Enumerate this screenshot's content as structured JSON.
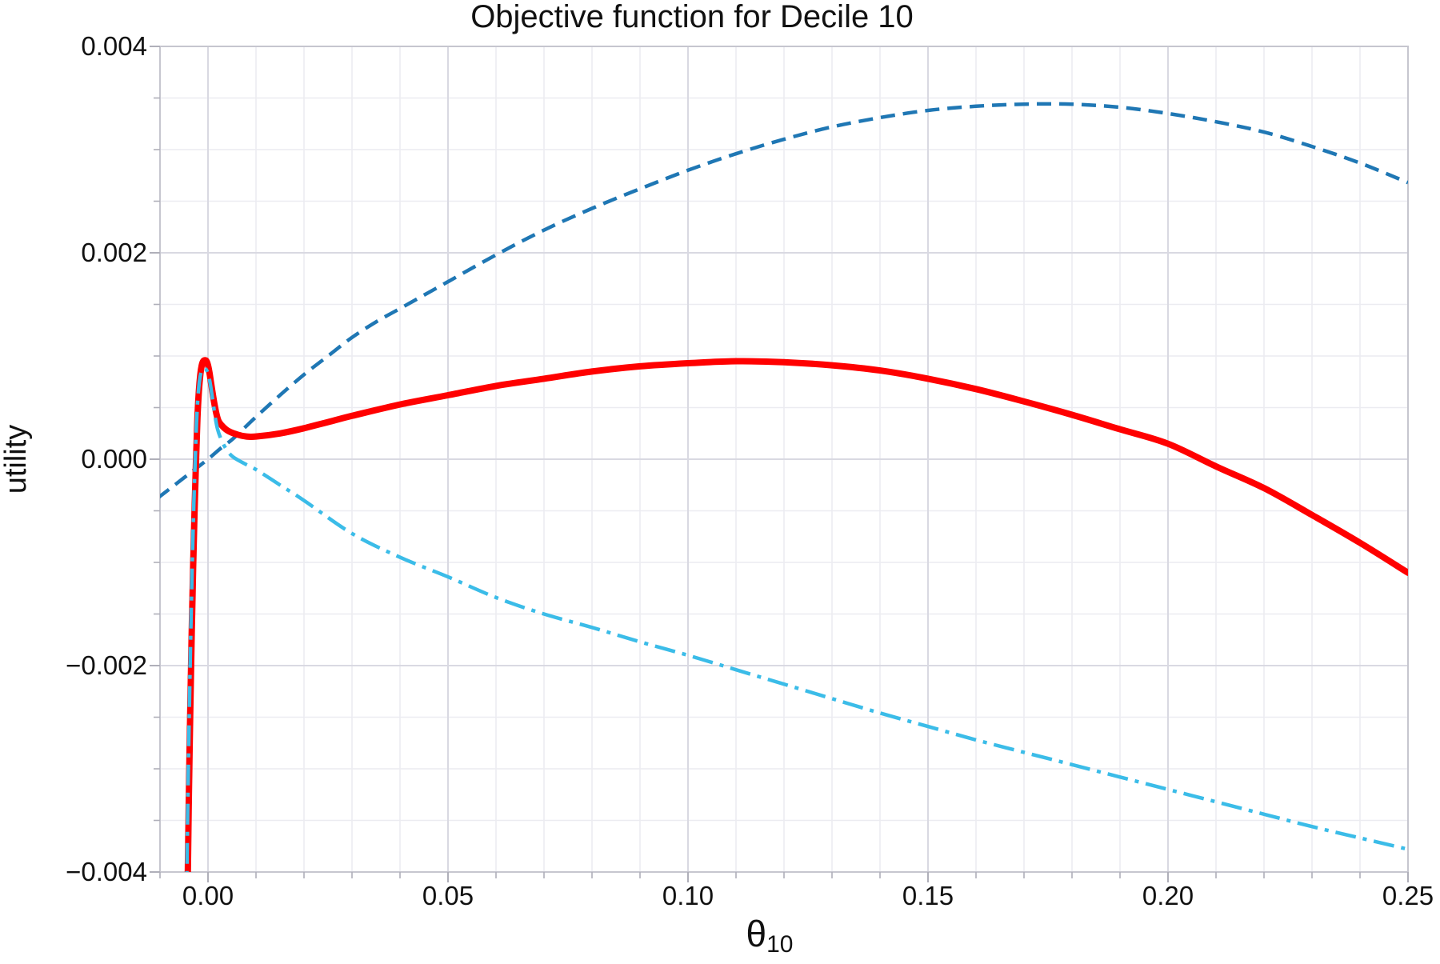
{
  "title": "Objective function for Decile 10",
  "axes": {
    "x": {
      "label_base": "θ",
      "label_sub": "10",
      "min": -0.01,
      "max": 0.25,
      "major_ticks": [
        0.0,
        0.05,
        0.1,
        0.15,
        0.2,
        0.25
      ],
      "major_tick_labels": [
        "0.00",
        "0.05",
        "0.10",
        "0.15",
        "0.20",
        "0.25"
      ],
      "minor_tick_step": 0.01
    },
    "y": {
      "label": "utility",
      "min": -0.004,
      "max": 0.004,
      "major_ticks": [
        0.004,
        0.002,
        0.0,
        -0.002,
        -0.004
      ],
      "major_tick_labels": [
        "0.004",
        "0.002",
        "0.000",
        "−0.002",
        "−0.004"
      ],
      "minor_tick_step": 0.0005
    }
  },
  "style": {
    "background": "#FFFFFF",
    "frame_color": "#C6C6CF",
    "grid_major_color": "#D9D9E2",
    "grid_minor_color": "#ECECF1",
    "tick_color": "#AFAFB9",
    "text_color": "#111111",
    "series_colors": {
      "dashed_blue": "#1F77B4",
      "solid_red": "#FF0000",
      "dashdot_cyan": "#3BBCE8"
    }
  },
  "chart_data": {
    "type": "line",
    "title": "Objective function for Decile 10",
    "xlabel": "θ₁₀",
    "ylabel": "utility",
    "xlim": [
      -0.01,
      0.25
    ],
    "ylim": [
      -0.004,
      0.004
    ],
    "grid": true,
    "legend": "none",
    "series": [
      {
        "name": "dashed_blue",
        "style": "dashed",
        "color": "#1F77B4",
        "width": 4.5,
        "points": [
          [
            -0.0105,
            -0.00038
          ],
          [
            -0.01,
            -0.00036
          ],
          [
            -0.0075,
            -0.00027
          ],
          [
            -0.005,
            -0.00018
          ],
          [
            -0.0025,
            -9e-05
          ],
          [
            0,
            0
          ],
          [
            0.0025,
            0.0001
          ],
          [
            0.005,
            0.00019
          ],
          [
            0.0075,
            0.0003
          ],
          [
            0.01,
            0.00041
          ],
          [
            0.015,
            0.00062
          ],
          [
            0.02,
            0.00082
          ],
          [
            0.025,
            0.001
          ],
          [
            0.03,
            0.00118
          ],
          [
            0.035,
            0.00133
          ],
          [
            0.04,
            0.00146
          ],
          [
            0.045,
            0.00159
          ],
          [
            0.05,
            0.00172
          ],
          [
            0.06,
            0.00198
          ],
          [
            0.07,
            0.00222
          ],
          [
            0.08,
            0.00243
          ],
          [
            0.09,
            0.00262
          ],
          [
            0.1,
            0.0028
          ],
          [
            0.11,
            0.00296
          ],
          [
            0.12,
            0.0031
          ],
          [
            0.13,
            0.00322
          ],
          [
            0.14,
            0.00331
          ],
          [
            0.15,
            0.00338
          ],
          [
            0.16,
            0.00342
          ],
          [
            0.17,
            0.00344
          ],
          [
            0.18,
            0.00344
          ],
          [
            0.19,
            0.00341
          ],
          [
            0.2,
            0.00335
          ],
          [
            0.21,
            0.00327
          ],
          [
            0.22,
            0.00317
          ],
          [
            0.23,
            0.00303
          ],
          [
            0.24,
            0.00287
          ],
          [
            0.25,
            0.00268
          ]
        ]
      },
      {
        "name": "solid_red",
        "style": "solid",
        "color": "#FF0000",
        "width": 8,
        "points": [
          [
            -0.00424,
            -0.0043
          ],
          [
            -0.0042,
            -0.004
          ],
          [
            -0.004,
            -0.0033
          ],
          [
            -0.0037,
            -0.00245
          ],
          [
            -0.0034,
            -0.0017
          ],
          [
            -0.0031,
            -0.00105
          ],
          [
            -0.0028,
            -0.0005
          ],
          [
            -0.0025,
            -2e-05
          ],
          [
            -0.0022,
            0.0004
          ],
          [
            -0.0019,
            0.00066
          ],
          [
            -0.0016,
            0.00082
          ],
          [
            -0.0013,
            0.00091
          ],
          [
            -0.001,
            0.00095
          ],
          [
            -0.0006,
            0.00096
          ],
          [
            -0.0003,
            0.00095
          ],
          [
            0,
            0.00091
          ],
          [
            0.0003,
            0.00084
          ],
          [
            0.0006,
            0.00075
          ],
          [
            0.001,
            0.00063
          ],
          [
            0.0014,
            0.00052
          ],
          [
            0.0018,
            0.00043
          ],
          [
            0.0022,
            0.00037
          ],
          [
            0.0028,
            0.00033
          ],
          [
            0.004,
            0.00028
          ],
          [
            0.006,
            0.00024
          ],
          [
            0.008,
            0.00022
          ],
          [
            0.01,
            0.00022
          ],
          [
            0.015,
            0.00025
          ],
          [
            0.02,
            0.0003
          ],
          [
            0.025,
            0.00036
          ],
          [
            0.03,
            0.00042
          ],
          [
            0.04,
            0.00053
          ],
          [
            0.05,
            0.00062
          ],
          [
            0.06,
            0.00071
          ],
          [
            0.07,
            0.00078
          ],
          [
            0.08,
            0.00085
          ],
          [
            0.09,
            0.0009
          ],
          [
            0.1,
            0.00093
          ],
          [
            0.11,
            0.00095
          ],
          [
            0.12,
            0.00094
          ],
          [
            0.13,
            0.00091
          ],
          [
            0.14,
            0.00086
          ],
          [
            0.15,
            0.00078
          ],
          [
            0.16,
            0.00068
          ],
          [
            0.17,
            0.00056
          ],
          [
            0.18,
            0.00043
          ],
          [
            0.19,
            0.00029
          ],
          [
            0.2,
            0.00015
          ],
          [
            0.21,
            -7e-05
          ],
          [
            0.22,
            -0.00028
          ],
          [
            0.23,
            -0.00054
          ],
          [
            0.24,
            -0.00081
          ],
          [
            0.25,
            -0.0011
          ]
        ]
      },
      {
        "name": "dashdot_cyan",
        "style": "dashdot",
        "color": "#3BBCE8",
        "width": 4.5,
        "points": [
          [
            -0.00445,
            -0.0043
          ],
          [
            -0.0044,
            -0.004
          ],
          [
            -0.0042,
            -0.0033
          ],
          [
            -0.0039,
            -0.00245
          ],
          [
            -0.0036,
            -0.0017
          ],
          [
            -0.0033,
            -0.00105
          ],
          [
            -0.003,
            -0.0005
          ],
          [
            -0.0027,
            -5e-05
          ],
          [
            -0.0024,
            0.00035
          ],
          [
            -0.0021,
            0.0006
          ],
          [
            -0.0018,
            0.00075
          ],
          [
            -0.0015,
            0.00083
          ],
          [
            -0.0012,
            0.00087
          ],
          [
            -0.0008,
            0.00088
          ],
          [
            -0.0004,
            0.00087
          ],
          [
            0,
            0.00083
          ],
          [
            0.0004,
            0.00075
          ],
          [
            0.0008,
            0.00063
          ],
          [
            0.0012,
            0.0005
          ],
          [
            0.0016,
            0.00038
          ],
          [
            0.002,
            0.00029
          ],
          [
            0.0025,
            0.00022
          ],
          [
            0.0035,
            0.00012
          ],
          [
            0.005,
            3e-05
          ],
          [
            0.0075,
            -4e-05
          ],
          [
            0.01,
            -0.0001
          ],
          [
            0.015,
            -0.00025
          ],
          [
            0.02,
            -0.0004
          ],
          [
            0.03,
            -0.00072
          ],
          [
            0.04,
            -0.00095
          ],
          [
            0.05,
            -0.00114
          ],
          [
            0.06,
            -0.00134
          ],
          [
            0.07,
            -0.0015
          ],
          [
            0.08,
            -0.00163
          ],
          [
            0.09,
            -0.00177
          ],
          [
            0.1,
            -0.0019
          ],
          [
            0.11,
            -0.00204
          ],
          [
            0.12,
            -0.00218
          ],
          [
            0.13,
            -0.00232
          ],
          [
            0.14,
            -0.00246
          ],
          [
            0.15,
            -0.00259
          ],
          [
            0.16,
            -0.00272
          ],
          [
            0.17,
            -0.00284
          ],
          [
            0.18,
            -0.00296
          ],
          [
            0.19,
            -0.00308
          ],
          [
            0.2,
            -0.0032
          ],
          [
            0.21,
            -0.00332
          ],
          [
            0.22,
            -0.00344
          ],
          [
            0.23,
            -0.00356
          ],
          [
            0.24,
            -0.00367
          ],
          [
            0.25,
            -0.00378
          ]
        ]
      }
    ]
  }
}
